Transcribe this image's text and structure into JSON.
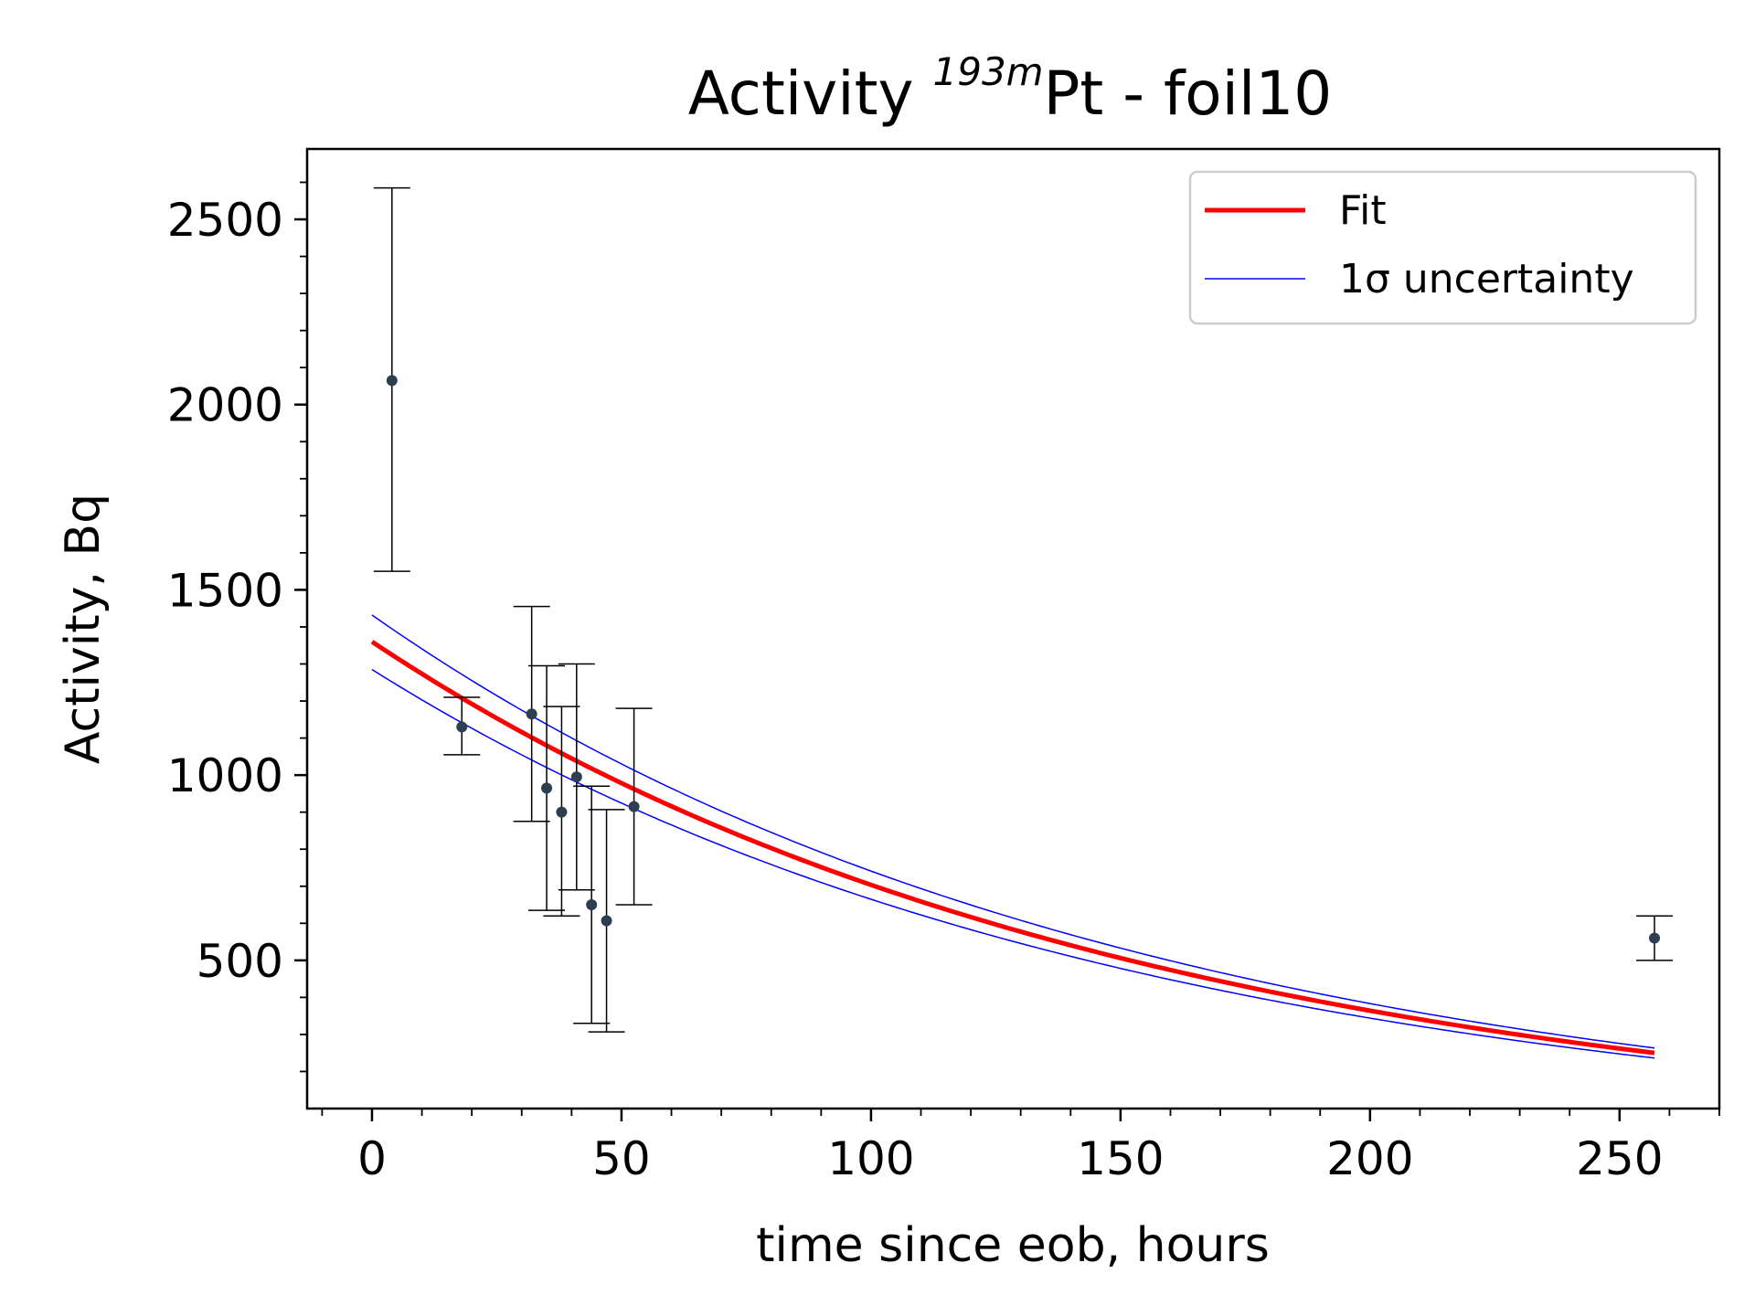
{
  "chart_data": {
    "type": "scatter",
    "title_main": "Activity ",
    "title_sup": "193m",
    "title_rest": "Pt - foil10",
    "xlabel": "time since eob, hours",
    "ylabel": "Activity, Bq",
    "xlim": [
      -13,
      270
    ],
    "ylim": [
      100,
      2690
    ],
    "x_ticks": [
      0,
      50,
      100,
      150,
      200,
      250
    ],
    "x_tick_labels": [
      "0",
      "50",
      "100",
      "150",
      "200",
      "250"
    ],
    "y_ticks": [
      500,
      1000,
      1500,
      2000,
      2500
    ],
    "y_tick_labels": [
      "500",
      "1000",
      "1500",
      "2000",
      "2500"
    ],
    "x_minor_step": 10,
    "y_minor_step": 100,
    "grid": false,
    "legend_position": "upper right",
    "series": [
      {
        "name": "Fit",
        "kind": "line",
        "color": "#ff0000",
        "function": "exp_decay",
        "A0": 1360,
        "half_life_hours": 105.2,
        "x_range": [
          0,
          257
        ]
      },
      {
        "name": "1σ uncertainty",
        "kind": "band",
        "color": "#0000ff",
        "lower_A0": 1285,
        "upper_A0": 1432,
        "x_range": [
          0,
          257
        ]
      },
      {
        "kind": "errorbar",
        "marker_color": "#2c3e50",
        "errorbar_color": "#000000",
        "points": [
          {
            "x": 4,
            "y": 2065,
            "yerr_low": 515,
            "yerr_high": 520
          },
          {
            "x": 18,
            "y": 1130,
            "yerr_low": 75,
            "yerr_high": 80
          },
          {
            "x": 32,
            "y": 1165,
            "yerr_low": 290,
            "yerr_high": 290
          },
          {
            "x": 35,
            "y": 965,
            "yerr_low": 330,
            "yerr_high": 330
          },
          {
            "x": 38,
            "y": 900,
            "yerr_low": 280,
            "yerr_high": 285
          },
          {
            "x": 41,
            "y": 995,
            "yerr_low": 305,
            "yerr_high": 305
          },
          {
            "x": 44,
            "y": 650,
            "yerr_low": 320,
            "yerr_high": 320
          },
          {
            "x": 47,
            "y": 607,
            "yerr_low": 300,
            "yerr_high": 300
          },
          {
            "x": 52.5,
            "y": 915,
            "yerr_low": 265,
            "yerr_high": 265
          },
          {
            "x": 257,
            "y": 560,
            "yerr_low": 60,
            "yerr_high": 60
          }
        ]
      }
    ]
  }
}
